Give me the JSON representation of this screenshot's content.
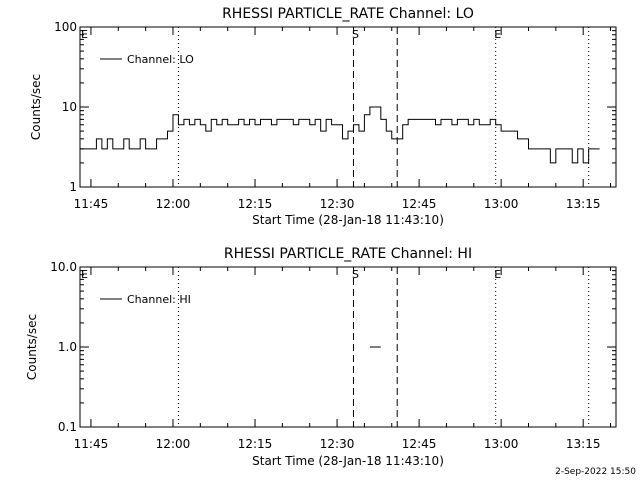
{
  "chart_data": [
    {
      "type": "line",
      "title": "RHESSI PARTICLE_RATE Channel: LO",
      "ylabel": "Counts/sec",
      "xlabel": "Start Time (28-Jan-18 11:43:10)",
      "yscale": "log",
      "ylim": [
        1,
        100
      ],
      "xlim": [
        "11:43",
        "13:21"
      ],
      "y_ticks": [
        {
          "v": 1,
          "label": "1"
        },
        {
          "v": 10,
          "label": "10"
        },
        {
          "v": 100,
          "label": "100"
        }
      ],
      "x_ticks": [
        "11:45",
        "12:00",
        "12:15",
        "12:30",
        "12:45",
        "13:00",
        "13:15"
      ],
      "legend": {
        "label": "Channel: LO",
        "position": "top-left"
      },
      "vlines": [
        {
          "t": "12:01",
          "style": "dotted",
          "label": ""
        },
        {
          "t": "12:33",
          "style": "dashed",
          "label": "S"
        },
        {
          "t": "12:41",
          "style": "dashed",
          "label": ""
        },
        {
          "t": "12:59",
          "style": "dotted",
          "label": "E"
        },
        {
          "t": "13:16",
          "style": "dotted",
          "label": ""
        }
      ],
      "edge_marker": "E",
      "series": [
        {
          "name": "Channel: LO",
          "x": [
            "11:43",
            "11:45",
            "11:46",
            "11:47",
            "11:48",
            "11:49",
            "11:50",
            "11:51",
            "11:52",
            "11:53",
            "11:54",
            "11:55",
            "11:56",
            "11:57",
            "11:58",
            "11:59",
            "12:00",
            "12:01",
            "12:02",
            "12:03",
            "12:04",
            "12:05",
            "12:06",
            "12:07",
            "12:08",
            "12:09",
            "12:10",
            "12:11",
            "12:12",
            "12:13",
            "12:14",
            "12:15",
            "12:16",
            "12:17",
            "12:18",
            "12:19",
            "12:20",
            "12:21",
            "12:22",
            "12:23",
            "12:24",
            "12:25",
            "12:26",
            "12:27",
            "12:28",
            "12:29",
            "12:30",
            "12:31",
            "12:32",
            "12:33",
            "12:34",
            "12:35",
            "12:36",
            "12:37",
            "12:38",
            "12:39",
            "12:40",
            "12:41",
            "12:42",
            "12:43",
            "12:44",
            "12:45",
            "12:46",
            "12:47",
            "12:48",
            "12:49",
            "12:50",
            "12:51",
            "12:52",
            "12:53",
            "12:54",
            "12:55",
            "12:56",
            "12:57",
            "12:58",
            "12:59",
            "13:00",
            "13:01",
            "13:02",
            "13:03",
            "13:04",
            "13:05",
            "13:06",
            "13:07",
            "13:08",
            "13:09",
            "13:10",
            "13:11",
            "13:12",
            "13:13",
            "13:14",
            "13:15",
            "13:16",
            "13:17"
          ],
          "values": [
            3,
            3,
            4,
            3,
            4,
            3,
            3,
            4,
            3,
            3,
            4,
            3,
            3,
            4,
            4,
            5,
            8,
            6,
            7,
            6,
            7,
            6,
            5,
            7,
            6,
            7,
            6,
            6,
            7,
            6,
            7,
            6,
            7,
            7,
            6,
            7,
            7,
            7,
            6,
            7,
            7,
            6,
            7,
            5,
            7,
            6,
            6,
            4,
            5,
            6,
            5,
            8,
            10,
            10,
            7,
            5,
            4,
            4,
            6,
            7,
            7,
            7,
            7,
            7,
            6,
            7,
            7,
            6,
            7,
            7,
            6,
            7,
            6,
            6,
            7,
            6,
            5,
            5,
            5,
            4,
            4,
            3,
            3,
            3,
            3,
            2,
            3,
            3,
            3,
            2,
            3,
            2,
            3,
            3
          ]
        }
      ]
    },
    {
      "type": "line",
      "title": "RHESSI PARTICLE_RATE Channel: HI",
      "ylabel": "Counts/sec",
      "xlabel": "Start Time (28-Jan-18 11:43:10)",
      "yscale": "log",
      "ylim": [
        0.1,
        10
      ],
      "xlim": [
        "11:43",
        "13:21"
      ],
      "y_ticks": [
        {
          "v": 0.1,
          "label": "0.1"
        },
        {
          "v": 1,
          "label": "1.0"
        },
        {
          "v": 10,
          "label": "10.0"
        }
      ],
      "x_ticks": [
        "11:45",
        "12:00",
        "12:15",
        "12:30",
        "12:45",
        "13:00",
        "13:15"
      ],
      "legend": {
        "label": "Channel: HI",
        "position": "top-left"
      },
      "vlines": [
        {
          "t": "12:01",
          "style": "dotted",
          "label": ""
        },
        {
          "t": "12:33",
          "style": "dashed",
          "label": "S"
        },
        {
          "t": "12:41",
          "style": "dashed",
          "label": ""
        },
        {
          "t": "12:59",
          "style": "dotted",
          "label": "E"
        },
        {
          "t": "13:16",
          "style": "dotted",
          "label": ""
        }
      ],
      "edge_marker": "E",
      "series": [
        {
          "name": "Channel: HI",
          "x": [
            "12:36",
            "12:38"
          ],
          "values": [
            1,
            1
          ]
        }
      ]
    }
  ],
  "footer": {
    "timestamp": "2-Sep-2022 15:50"
  }
}
